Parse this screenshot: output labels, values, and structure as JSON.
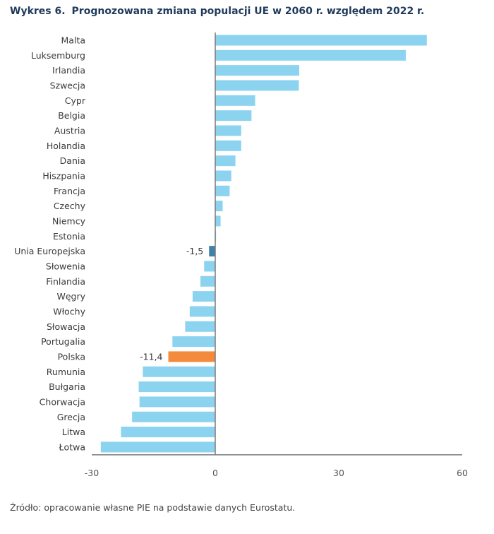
{
  "chart_data": {
    "type": "bar",
    "orientation": "horizontal",
    "title_number": "Wykres 6.",
    "title": "Prognozowana zmiana populacji UE w 2060 r. względem 2022 r.",
    "xlabel": "",
    "ylabel": "",
    "xlim": [
      -30,
      60
    ],
    "xticks": [
      -30,
      0,
      30,
      60
    ],
    "grid": false,
    "categories": [
      "Malta",
      "Luksemburg",
      "Irlandia",
      "Szwecja",
      "Cypr",
      "Belgia",
      "Austria",
      "Holandia",
      "Dania",
      "Hiszpania",
      "Francja",
      "Czechy",
      "Niemcy",
      "Estonia",
      "Unia Europejska",
      "Słowenia",
      "Finlandia",
      "Węgry",
      "Włochy",
      "Słowacja",
      "Portugalia",
      "Polska",
      "Rumunia",
      "Bułgaria",
      "Chorwacja",
      "Grecja",
      "Litwa",
      "Łotwa"
    ],
    "values": [
      51.4,
      46.3,
      20.4,
      20.3,
      9.7,
      8.8,
      6.3,
      6.3,
      4.9,
      3.9,
      3.5,
      1.8,
      1.3,
      0.2,
      -1.5,
      -2.7,
      -3.6,
      -5.5,
      -6.2,
      -7.3,
      -10.4,
      -11.4,
      -17.6,
      -18.6,
      -18.4,
      -20.2,
      -22.9,
      -27.8
    ],
    "data_labels": {
      "Unia Europejska": "-1,5",
      "Polska": "-11,4"
    },
    "colors": {
      "default": "#8cd3f0",
      "Unia Europejska": "#3f82a8",
      "Polska": "#f48a3c"
    }
  },
  "source": "Źródło: opracowanie własne PIE na podstawie danych Eurostatu."
}
